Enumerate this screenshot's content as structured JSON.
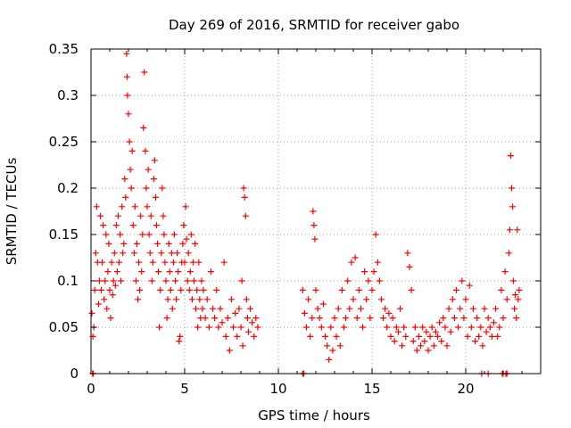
{
  "chart_data": {
    "type": "scatter",
    "title": "Day 269 of 2016, SRMTID for receiver gabo",
    "xlabel": "GPS time / hours",
    "ylabel": "SRMTID / TECUs",
    "xlim": [
      0,
      24
    ],
    "ylim": [
      0,
      0.35
    ],
    "xticks": [
      0,
      5,
      10,
      15,
      20
    ],
    "xtick_labels": [
      "0",
      "5",
      "10",
      "15",
      "20"
    ],
    "yticks": [
      0,
      0.05,
      0.1,
      0.15,
      0.2,
      0.25,
      0.3,
      0.35
    ],
    "ytick_labels": [
      "0",
      "0.05",
      "0.1",
      "0.15",
      "0.2",
      "0.25",
      "0.3",
      "0.35"
    ],
    "grid": true,
    "marker": "+",
    "color": "#ff0000",
    "series": [
      {
        "name": "SRMTID",
        "points": [
          [
            0.05,
            0.065
          ],
          [
            0.1,
            0.04
          ],
          [
            0.15,
            0.05
          ],
          [
            0.2,
            0.09
          ],
          [
            0.25,
            0.13
          ],
          [
            0.3,
            0.18
          ],
          [
            0.35,
            0.12
          ],
          [
            0.4,
            0.075
          ],
          [
            0.45,
            0.1
          ],
          [
            0.5,
            0.17
          ],
          [
            0.55,
            0.09
          ],
          [
            0.6,
            0.12
          ],
          [
            0.65,
            0.16
          ],
          [
            0.7,
            0.08
          ],
          [
            0.75,
            0.1
          ],
          [
            0.8,
            0.15
          ],
          [
            0.85,
            0.07
          ],
          [
            0.9,
            0.11
          ],
          [
            0.95,
            0.14
          ],
          [
            1.0,
            0.09
          ],
          [
            1.05,
            0.06
          ],
          [
            1.1,
            0.12
          ],
          [
            1.15,
            0.085
          ],
          [
            1.2,
            0.1
          ],
          [
            1.25,
            0.13
          ],
          [
            1.3,
            0.095
          ],
          [
            1.35,
            0.16
          ],
          [
            1.4,
            0.11
          ],
          [
            1.45,
            0.17
          ],
          [
            1.5,
            0.12
          ],
          [
            1.55,
            0.15
          ],
          [
            1.6,
            0.1
          ],
          [
            1.65,
            0.18
          ],
          [
            1.7,
            0.13
          ],
          [
            1.75,
            0.14
          ],
          [
            1.8,
            0.21
          ],
          [
            1.85,
            0.19
          ],
          [
            1.9,
            0.345
          ],
          [
            1.92,
            0.32
          ],
          [
            1.95,
            0.3
          ],
          [
            2.0,
            0.28
          ],
          [
            2.05,
            0.25
          ],
          [
            2.1,
            0.22
          ],
          [
            2.15,
            0.2
          ],
          [
            2.2,
            0.24
          ],
          [
            2.25,
            0.16
          ],
          [
            2.3,
            0.13
          ],
          [
            2.35,
            0.18
          ],
          [
            2.4,
            0.1
          ],
          [
            2.45,
            0.14
          ],
          [
            2.5,
            0.08
          ],
          [
            2.55,
            0.12
          ],
          [
            2.6,
            0.09
          ],
          [
            2.65,
            0.17
          ],
          [
            2.7,
            0.11
          ],
          [
            2.75,
            0.15
          ],
          [
            2.8,
            0.265
          ],
          [
            2.85,
            0.325
          ],
          [
            2.9,
            0.24
          ],
          [
            2.95,
            0.2
          ],
          [
            3.0,
            0.18
          ],
          [
            3.05,
            0.22
          ],
          [
            3.1,
            0.15
          ],
          [
            3.15,
            0.13
          ],
          [
            3.2,
            0.17
          ],
          [
            3.25,
            0.1
          ],
          [
            3.3,
            0.12
          ],
          [
            3.35,
            0.21
          ],
          [
            3.4,
            0.23
          ],
          [
            3.45,
            0.19
          ],
          [
            3.5,
            0.16
          ],
          [
            3.55,
            0.14
          ],
          [
            3.6,
            0.11
          ],
          [
            3.65,
            0.05
          ],
          [
            3.7,
            0.09
          ],
          [
            3.75,
            0.13
          ],
          [
            3.8,
            0.2
          ],
          [
            3.85,
            0.17
          ],
          [
            3.9,
            0.15
          ],
          [
            3.95,
            0.12
          ],
          [
            4.0,
            0.1
          ],
          [
            4.05,
            0.06
          ],
          [
            4.1,
            0.08
          ],
          [
            4.15,
            0.14
          ],
          [
            4.2,
            0.11
          ],
          [
            4.25,
            0.09
          ],
          [
            4.3,
            0.13
          ],
          [
            4.35,
            0.07
          ],
          [
            4.4,
            0.12
          ],
          [
            4.45,
            0.15
          ],
          [
            4.5,
            0.1
          ],
          [
            4.55,
            0.08
          ],
          [
            4.6,
            0.13
          ],
          [
            4.65,
            0.11
          ],
          [
            4.7,
            0.035
          ],
          [
            4.75,
            0.04
          ],
          [
            4.8,
            0.09
          ],
          [
            4.85,
            0.12
          ],
          [
            4.9,
            0.14
          ],
          [
            4.95,
            0.16
          ],
          [
            5.0,
            0.12
          ],
          [
            5.05,
            0.18
          ],
          [
            5.1,
            0.145
          ],
          [
            5.15,
            0.1
          ],
          [
            5.2,
            0.13
          ],
          [
            5.25,
            0.09
          ],
          [
            5.3,
            0.11
          ],
          [
            5.35,
            0.15
          ],
          [
            5.4,
            0.08
          ],
          [
            5.45,
            0.12
          ],
          [
            5.5,
            0.1
          ],
          [
            5.55,
            0.14
          ],
          [
            5.6,
            0.07
          ],
          [
            5.65,
            0.09
          ],
          [
            5.7,
            0.05
          ],
          [
            5.75,
            0.12
          ],
          [
            5.8,
            0.08
          ],
          [
            5.85,
            0.06
          ],
          [
            5.9,
            0.1
          ],
          [
            5.95,
            0.07
          ],
          [
            6.0,
            0.09
          ],
          [
            6.1,
            0.06
          ],
          [
            6.2,
            0.08
          ],
          [
            6.3,
            0.05
          ],
          [
            6.4,
            0.11
          ],
          [
            6.5,
            0.07
          ],
          [
            6.6,
            0.06
          ],
          [
            6.7,
            0.09
          ],
          [
            6.8,
            0.05
          ],
          [
            6.9,
            0.07
          ],
          [
            7.0,
            0.055
          ],
          [
            7.1,
            0.12
          ],
          [
            7.2,
            0.04
          ],
          [
            7.3,
            0.06
          ],
          [
            7.4,
            0.025
          ],
          [
            7.5,
            0.08
          ],
          [
            7.6,
            0.05
          ],
          [
            7.7,
            0.065
          ],
          [
            7.8,
            0.04
          ],
          [
            7.9,
            0.07
          ],
          [
            8.0,
            0.05
          ],
          [
            8.05,
            0.1
          ],
          [
            8.1,
            0.03
          ],
          [
            8.15,
            0.2
          ],
          [
            8.2,
            0.19
          ],
          [
            8.25,
            0.17
          ],
          [
            8.3,
            0.08
          ],
          [
            8.35,
            0.06
          ],
          [
            8.4,
            0.045
          ],
          [
            8.5,
            0.07
          ],
          [
            8.6,
            0.055
          ],
          [
            8.7,
            0.04
          ],
          [
            8.8,
            0.06
          ],
          [
            8.9,
            0.05
          ],
          [
            11.3,
            0.09
          ],
          [
            11.4,
            0.065
          ],
          [
            11.5,
            0.05
          ],
          [
            11.6,
            0.08
          ],
          [
            11.7,
            0.04
          ],
          [
            11.8,
            0.06
          ],
          [
            11.85,
            0.175
          ],
          [
            11.9,
            0.16
          ],
          [
            11.95,
            0.145
          ],
          [
            12.0,
            0.09
          ],
          [
            12.1,
            0.07
          ],
          [
            12.2,
            0.06
          ],
          [
            12.3,
            0.05
          ],
          [
            12.4,
            0.075
          ],
          [
            12.5,
            0.04
          ],
          [
            12.6,
            0.03
          ],
          [
            12.7,
            0.015
          ],
          [
            12.8,
            0.05
          ],
          [
            12.9,
            0.025
          ],
          [
            13.0,
            0.06
          ],
          [
            13.1,
            0.04
          ],
          [
            13.2,
            0.07
          ],
          [
            13.3,
            0.03
          ],
          [
            13.4,
            0.09
          ],
          [
            13.5,
            0.05
          ],
          [
            13.6,
            0.06
          ],
          [
            13.7,
            0.1
          ],
          [
            13.8,
            0.07
          ],
          [
            13.9,
            0.12
          ],
          [
            14.0,
            0.08
          ],
          [
            14.1,
            0.125
          ],
          [
            14.2,
            0.06
          ],
          [
            14.3,
            0.09
          ],
          [
            14.4,
            0.07
          ],
          [
            14.5,
            0.05
          ],
          [
            14.6,
            0.11
          ],
          [
            14.7,
            0.08
          ],
          [
            14.8,
            0.1
          ],
          [
            14.9,
            0.06
          ],
          [
            15.0,
            0.09
          ],
          [
            15.1,
            0.11
          ],
          [
            15.2,
            0.15
          ],
          [
            15.3,
            0.12
          ],
          [
            15.4,
            0.1
          ],
          [
            15.5,
            0.08
          ],
          [
            15.6,
            0.06
          ],
          [
            15.7,
            0.07
          ],
          [
            15.8,
            0.05
          ],
          [
            15.9,
            0.065
          ],
          [
            16.0,
            0.04
          ],
          [
            16.1,
            0.06
          ],
          [
            16.2,
            0.035
          ],
          [
            16.3,
            0.05
          ],
          [
            16.4,
            0.045
          ],
          [
            16.5,
            0.07
          ],
          [
            16.6,
            0.03
          ],
          [
            16.7,
            0.05
          ],
          [
            16.8,
            0.04
          ],
          [
            16.9,
            0.13
          ],
          [
            17.0,
            0.115
          ],
          [
            17.1,
            0.09
          ],
          [
            17.2,
            0.035
          ],
          [
            17.3,
            0.05
          ],
          [
            17.4,
            0.025
          ],
          [
            17.5,
            0.04
          ],
          [
            17.6,
            0.03
          ],
          [
            17.7,
            0.05
          ],
          [
            17.8,
            0.035
          ],
          [
            17.9,
            0.045
          ],
          [
            18.0,
            0.025
          ],
          [
            18.1,
            0.04
          ],
          [
            18.2,
            0.05
          ],
          [
            18.3,
            0.03
          ],
          [
            18.4,
            0.045
          ],
          [
            18.5,
            0.04
          ],
          [
            18.6,
            0.055
          ],
          [
            18.7,
            0.035
          ],
          [
            18.8,
            0.06
          ],
          [
            18.9,
            0.05
          ],
          [
            19.0,
            0.03
          ],
          [
            19.1,
            0.07
          ],
          [
            19.2,
            0.045
          ],
          [
            19.3,
            0.08
          ],
          [
            19.4,
            0.06
          ],
          [
            19.5,
            0.09
          ],
          [
            19.6,
            0.05
          ],
          [
            19.7,
            0.07
          ],
          [
            19.8,
            0.1
          ],
          [
            19.9,
            0.06
          ],
          [
            20.0,
            0.08
          ],
          [
            20.1,
            0.04
          ],
          [
            20.2,
            0.095
          ],
          [
            20.3,
            0.05
          ],
          [
            20.4,
            0.07
          ],
          [
            20.5,
            0.035
          ],
          [
            20.6,
            0.06
          ],
          [
            20.7,
            0.04
          ],
          [
            20.8,
            0.05
          ],
          [
            20.9,
            0.03
          ],
          [
            21.0,
            0.07
          ],
          [
            21.1,
            0.045
          ],
          [
            21.2,
            0.06
          ],
          [
            21.3,
            0.05
          ],
          [
            21.4,
            0.04
          ],
          [
            21.5,
            0.055
          ],
          [
            21.6,
            0.07
          ],
          [
            21.7,
            0.04
          ],
          [
            21.8,
            0.05
          ],
          [
            21.9,
            0.09
          ],
          [
            22.0,
            0.06
          ],
          [
            22.1,
            0.11
          ],
          [
            22.2,
            0.08
          ],
          [
            22.3,
            0.13
          ],
          [
            22.35,
            0.155
          ],
          [
            22.4,
            0.235
          ],
          [
            22.45,
            0.2
          ],
          [
            22.5,
            0.18
          ],
          [
            22.55,
            0.1
          ],
          [
            22.6,
            0.07
          ],
          [
            22.65,
            0.085
          ],
          [
            22.7,
            0.06
          ],
          [
            22.75,
            0.155
          ],
          [
            22.8,
            0.08
          ],
          [
            22.85,
            0.09
          ],
          [
            0.08,
            0.0
          ],
          [
            0.12,
            0.0
          ],
          [
            11.3,
            0.0
          ],
          [
            11.35,
            0.0
          ],
          [
            20.85,
            0.0
          ],
          [
            21.2,
            0.0
          ],
          [
            21.95,
            0.0
          ],
          [
            22.0,
            0.0
          ],
          [
            22.15,
            0.0
          ],
          [
            22.2,
            0.0
          ]
        ]
      }
    ]
  }
}
